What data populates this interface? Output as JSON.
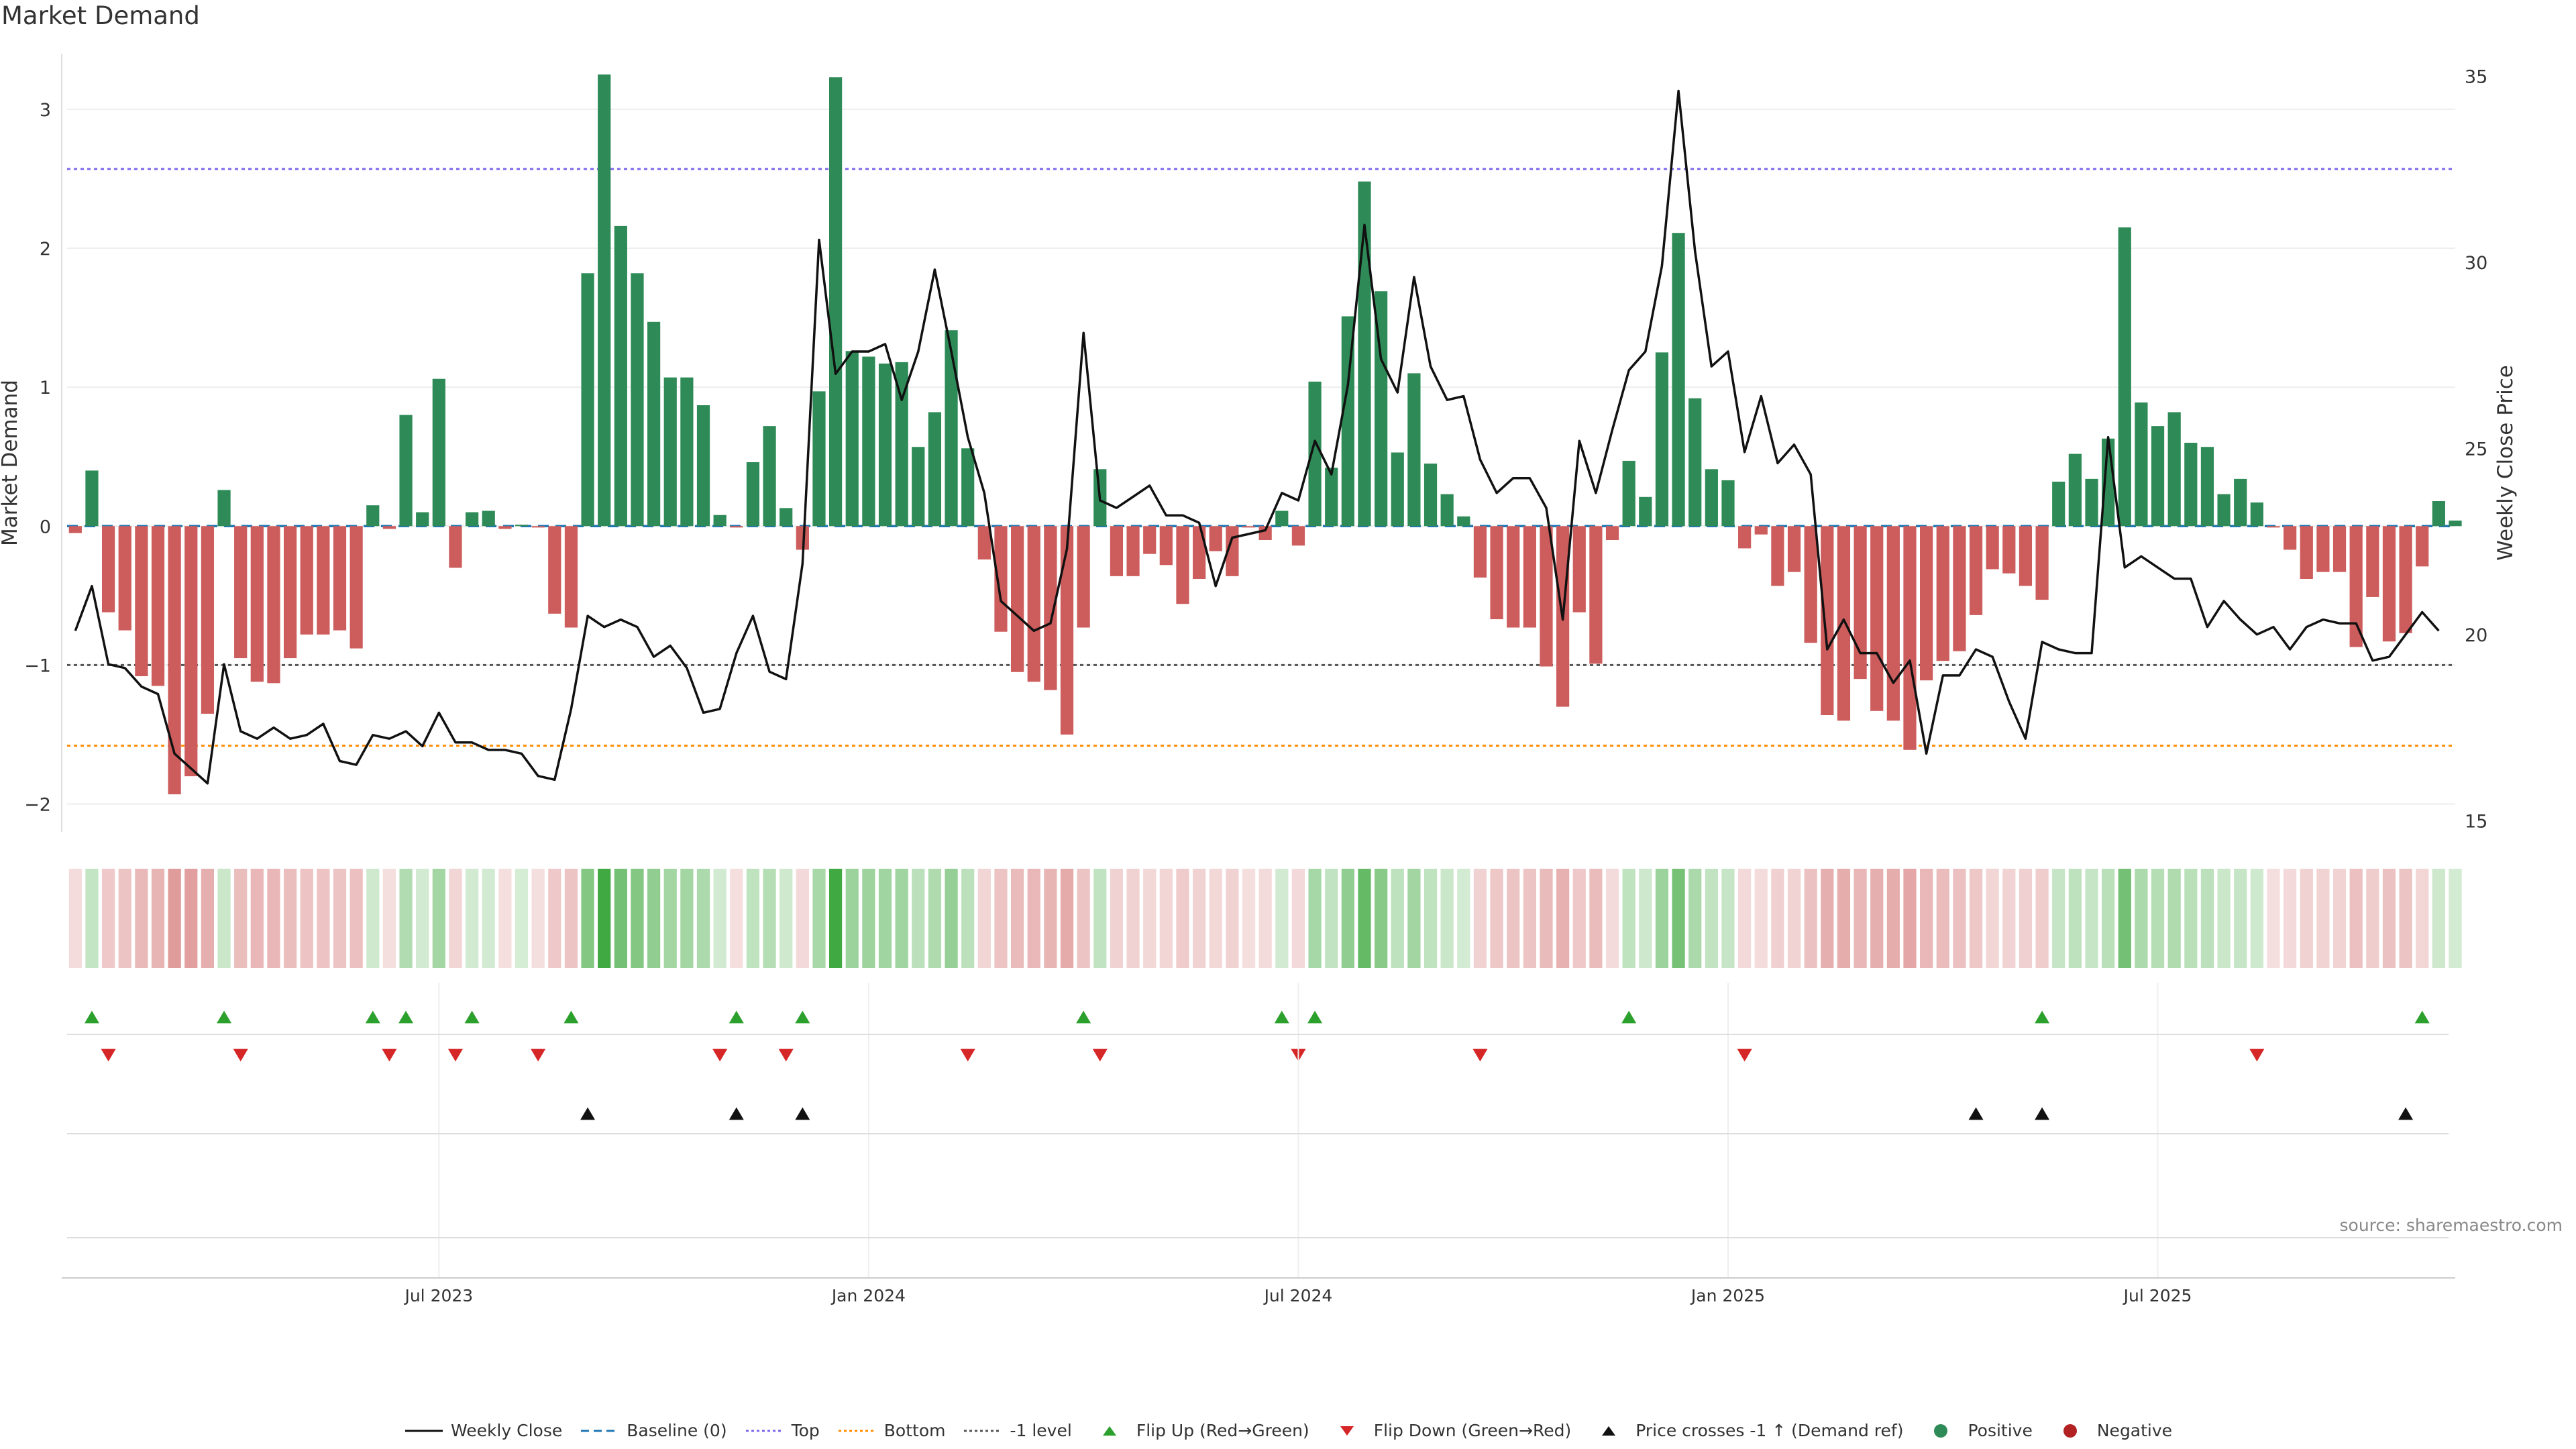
{
  "title": "Market Demand",
  "source": "source: sharemaestro.com",
  "colors": {
    "positive": "#2e8b57",
    "negative": "#cd5c5c",
    "price": "#111111",
    "baseline": "#1f77b4",
    "top": "#7b68ee",
    "bottom": "#ff8c00",
    "minus1": "#555555",
    "flip_up": "#2ca02c",
    "flip_down": "#d62728",
    "cross": "#111111"
  },
  "legend": [
    {
      "key": "weekly_close",
      "label": "Weekly Close"
    },
    {
      "key": "baseline",
      "label": "Baseline (0)"
    },
    {
      "key": "top",
      "label": "Top"
    },
    {
      "key": "bottom",
      "label": "Bottom"
    },
    {
      "key": "minus1",
      "label": "-1 level"
    },
    {
      "key": "flip_up",
      "label": "Flip Up (Red→Green)"
    },
    {
      "key": "flip_down",
      "label": "Flip Down (Green→Red)"
    },
    {
      "key": "cross",
      "label": "Price crosses -1 ↑ (Demand ref)"
    },
    {
      "key": "positive",
      "label": "Positive"
    },
    {
      "key": "negative",
      "label": "Negative"
    }
  ],
  "chart_data": {
    "type": "bar",
    "title": "Market Demand",
    "ylabel": "Market Demand",
    "y2label": "Weekly Close Price",
    "ylim": [
      -2.2,
      3.4
    ],
    "y2lim": [
      14.7,
      35.6
    ],
    "yticks": [
      3,
      2,
      1,
      0,
      -1,
      -2
    ],
    "y2ticks": [
      35,
      30,
      25,
      20,
      15
    ],
    "x_range_weeks": [
      0,
      144
    ],
    "x_ticks": [
      {
        "label": "Jul 2023",
        "week": 22
      },
      {
        "label": "Jan 2024",
        "week": 48
      },
      {
        "label": "Jul 2024",
        "week": 74
      },
      {
        "label": "Jan 2025",
        "week": 100
      },
      {
        "label": "Jul 2025",
        "week": 126
      }
    ],
    "levels": {
      "baseline": 0,
      "top": 2.57,
      "bottom": -1.58,
      "minus1": -1.0
    },
    "demand": [
      -0.05,
      0.4,
      -0.62,
      -0.75,
      -1.08,
      -1.15,
      -1.93,
      -1.8,
      -1.35,
      0.26,
      -0.95,
      -1.12,
      -1.13,
      -0.95,
      -0.78,
      -0.78,
      -0.75,
      -0.88,
      0.15,
      -0.02,
      0.8,
      0.1,
      1.06,
      -0.3,
      0.1,
      0.11,
      -0.02,
      0.01,
      -0.01,
      -0.63,
      -0.73,
      1.82,
      3.25,
      2.16,
      1.82,
      1.47,
      1.07,
      1.07,
      0.87,
      0.08,
      -0.01,
      0.46,
      0.72,
      0.13,
      -0.17,
      0.97,
      3.23,
      1.26,
      1.22,
      1.17,
      1.18,
      0.57,
      0.82,
      1.41,
      0.56,
      -0.24,
      -0.76,
      -1.05,
      -1.12,
      -1.18,
      -1.5,
      -0.73,
      0.41,
      -0.36,
      -0.36,
      -0.2,
      -0.28,
      -0.56,
      -0.38,
      -0.18,
      -0.36,
      -0.01,
      -0.1,
      0.11,
      -0.14,
      1.04,
      0.42,
      1.51,
      2.48,
      1.69,
      0.53,
      1.1,
      0.45,
      0.23,
      0.07,
      -0.37,
      -0.67,
      -0.73,
      -0.73,
      -1.01,
      -1.3,
      -0.62,
      -0.99,
      -0.1,
      0.47,
      0.21,
      1.25,
      2.11,
      0.92,
      0.41,
      0.33,
      -0.16,
      -0.06,
      -0.43,
      -0.33,
      -0.84,
      -1.36,
      -1.4,
      -1.1,
      -1.33,
      -1.4,
      -1.61,
      -1.11,
      -0.97,
      -0.9,
      -0.64,
      -0.31,
      -0.34,
      -0.43,
      -0.53,
      0.32,
      0.52,
      0.34,
      0.63,
      2.15,
      0.89,
      0.72,
      0.82,
      0.6,
      0.57,
      0.23,
      0.34,
      0.17,
      -0.01,
      -0.17,
      -0.38,
      -0.33,
      -0.33,
      -0.87,
      -0.51,
      -0.83,
      -0.77,
      -0.29,
      0.18,
      0.04
    ],
    "close": [
      20.1,
      21.3,
      19.2,
      19.1,
      18.6,
      18.4,
      16.8,
      16.4,
      16.0,
      19.2,
      17.4,
      17.2,
      17.5,
      17.2,
      17.3,
      17.6,
      16.6,
      16.5,
      17.3,
      17.2,
      17.4,
      17.0,
      17.9,
      17.1,
      17.1,
      16.9,
      16.9,
      16.8,
      16.2,
      16.1,
      18.0,
      20.5,
      20.2,
      20.4,
      20.2,
      19.4,
      19.7,
      19.1,
      17.9,
      18.0,
      19.5,
      20.5,
      19.0,
      18.8,
      21.9,
      30.6,
      27.0,
      27.6,
      27.6,
      27.8,
      26.3,
      27.6,
      29.8,
      27.6,
      25.3,
      23.8,
      20.9,
      20.5,
      20.1,
      20.3,
      22.3,
      28.1,
      23.6,
      23.4,
      23.7,
      24.0,
      23.2,
      23.2,
      23.0,
      21.3,
      22.6,
      22.7,
      22.8,
      23.8,
      23.6,
      25.2,
      24.3,
      26.7,
      31.0,
      27.4,
      26.5,
      29.6,
      27.2,
      26.3,
      26.4,
      24.7,
      23.8,
      24.2,
      24.2,
      23.4,
      20.4,
      25.2,
      23.8,
      25.5,
      27.1,
      27.6,
      29.9,
      34.6,
      30.3,
      27.2,
      27.6,
      24.9,
      26.4,
      24.6,
      25.1,
      24.3,
      19.6,
      20.4,
      19.5,
      19.5,
      18.7,
      19.3,
      16.8,
      18.9,
      18.9,
      19.6,
      19.4,
      18.2,
      17.2,
      19.8,
      19.6,
      19.5,
      19.5,
      25.3,
      21.8,
      22.1,
      21.8,
      21.5,
      21.5,
      20.2,
      20.9,
      20.4,
      20.0,
      20.2,
      19.6,
      20.2,
      20.4,
      20.3,
      20.3,
      19.3,
      19.4,
      20.0,
      20.6,
      20.1
    ],
    "flip_up_weeks": [
      1,
      9,
      18,
      20,
      24,
      30,
      40,
      44,
      61,
      73,
      75,
      94,
      119,
      142
    ],
    "flip_down_weeks": [
      2,
      10,
      19,
      23,
      28,
      39,
      43,
      54,
      62,
      74,
      85,
      101,
      132
    ],
    "cross_weeks": [
      31,
      40,
      44,
      115,
      119,
      141
    ]
  }
}
